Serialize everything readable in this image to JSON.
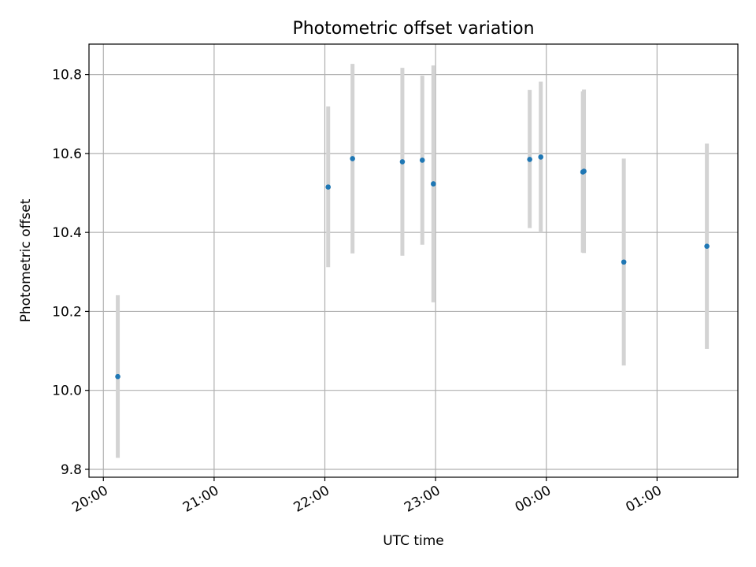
{
  "chart_data": {
    "type": "scatter",
    "title": "Photometric offset variation",
    "xlabel": "UTC time",
    "ylabel": "Photometric offset",
    "x_unit": "hours since 20:00 UTC",
    "xlim": [
      -0.13,
      5.73
    ],
    "ylim": [
      9.78,
      10.877
    ],
    "xticks": [
      {
        "value": 0,
        "label": "20:00"
      },
      {
        "value": 1,
        "label": "21:00"
      },
      {
        "value": 2,
        "label": "22:00"
      },
      {
        "value": 3,
        "label": "23:00"
      },
      {
        "value": 4,
        "label": "00:00"
      },
      {
        "value": 5,
        "label": "01:00"
      }
    ],
    "yticks": [
      {
        "value": 9.8,
        "label": "9.8"
      },
      {
        "value": 10.0,
        "label": "10.0"
      },
      {
        "value": 10.2,
        "label": "10.2"
      },
      {
        "value": 10.4,
        "label": "10.4"
      },
      {
        "value": 10.6,
        "label": "10.6"
      },
      {
        "value": 10.8,
        "label": "10.8"
      }
    ],
    "grid": true,
    "legend": "none",
    "series": [
      {
        "name": "offset",
        "color": "#1f77b4",
        "errorbar_color": "#d3d3d3",
        "points": [
          {
            "x": 0.13,
            "y": 10.035,
            "ylow": 9.829,
            "yhigh": 10.241
          },
          {
            "x": 2.03,
            "y": 10.515,
            "ylow": 10.312,
            "yhigh": 10.719
          },
          {
            "x": 2.25,
            "y": 10.587,
            "ylow": 10.347,
            "yhigh": 10.827
          },
          {
            "x": 2.7,
            "y": 10.579,
            "ylow": 10.341,
            "yhigh": 10.817
          },
          {
            "x": 2.88,
            "y": 10.583,
            "ylow": 10.369,
            "yhigh": 10.797
          },
          {
            "x": 2.98,
            "y": 10.523,
            "ylow": 10.223,
            "yhigh": 10.823
          },
          {
            "x": 3.85,
            "y": 10.585,
            "ylow": 10.411,
            "yhigh": 10.761
          },
          {
            "x": 3.95,
            "y": 10.591,
            "ylow": 10.4,
            "yhigh": 10.782
          },
          {
            "x": 4.33,
            "y": 10.553,
            "ylow": 10.349,
            "yhigh": 10.757
          },
          {
            "x": 4.34,
            "y": 10.555,
            "ylow": 10.348,
            "yhigh": 10.762
          },
          {
            "x": 4.7,
            "y": 10.325,
            "ylow": 10.063,
            "yhigh": 10.587
          },
          {
            "x": 5.45,
            "y": 10.365,
            "ylow": 10.105,
            "yhigh": 10.625
          }
        ]
      }
    ]
  }
}
